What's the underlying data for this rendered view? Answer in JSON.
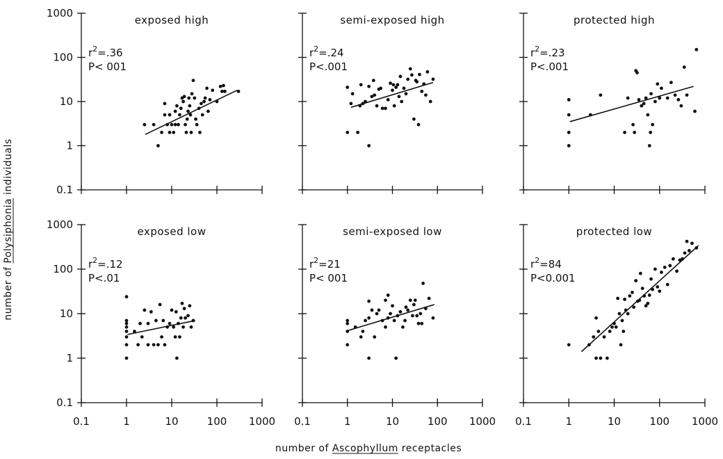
{
  "xlabel": {
    "pre": "number of ",
    "em": "Ascophyllum",
    "post": " receptacles"
  },
  "ylabel": {
    "pre": "number of ",
    "em": "Polysiphonia",
    "post": " individuals"
  },
  "chart_data": [
    {
      "type": "scatter",
      "title": "exposed high",
      "r2_label": ".36",
      "p_label": "P< 001",
      "xscale": "log",
      "yscale": "log",
      "xlim": [
        0.1,
        1000
      ],
      "ylim": [
        0.1,
        1000
      ],
      "fit": {
        "x": [
          2.6,
          280
        ],
        "y": [
          1.8,
          18
        ]
      },
      "points": [
        [
          2.5,
          3
        ],
        [
          4,
          3
        ],
        [
          5,
          1
        ],
        [
          6,
          2
        ],
        [
          7,
          5
        ],
        [
          7,
          9
        ],
        [
          8,
          3
        ],
        [
          9,
          2
        ],
        [
          9,
          5
        ],
        [
          10,
          3
        ],
        [
          11,
          2
        ],
        [
          12,
          3
        ],
        [
          12,
          6
        ],
        [
          13,
          8
        ],
        [
          14,
          3
        ],
        [
          15,
          5
        ],
        [
          16,
          7
        ],
        [
          17,
          12
        ],
        [
          18,
          10
        ],
        [
          19,
          13
        ],
        [
          20,
          3
        ],
        [
          21,
          2
        ],
        [
          22,
          4
        ],
        [
          23,
          6
        ],
        [
          24,
          12
        ],
        [
          25,
          8
        ],
        [
          26,
          5
        ],
        [
          27,
          2
        ],
        [
          28,
          15
        ],
        [
          30,
          30
        ],
        [
          32,
          12
        ],
        [
          34,
          4
        ],
        [
          36,
          3
        ],
        [
          40,
          7
        ],
        [
          42,
          2
        ],
        [
          45,
          9
        ],
        [
          48,
          5
        ],
        [
          52,
          10
        ],
        [
          55,
          12
        ],
        [
          60,
          20
        ],
        [
          64,
          6
        ],
        [
          70,
          11
        ],
        [
          80,
          18
        ],
        [
          100,
          10
        ],
        [
          120,
          22
        ],
        [
          130,
          17
        ],
        [
          140,
          23
        ],
        [
          150,
          17
        ],
        [
          300,
          17
        ]
      ]
    },
    {
      "type": "scatter",
      "title": "semi-exposed high",
      "r2_label": ".24",
      "p_label": "P<.001",
      "xscale": "log",
      "yscale": "log",
      "xlim": [
        0.1,
        1000
      ],
      "ylim": [
        0.1,
        1000
      ],
      "fit": {
        "x": [
          1.2,
          80
        ],
        "y": [
          7.4,
          27
        ]
      },
      "points": [
        [
          1,
          2
        ],
        [
          1,
          21
        ],
        [
          1.2,
          9
        ],
        [
          1.3,
          15
        ],
        [
          1.7,
          2
        ],
        [
          1.9,
          8
        ],
        [
          2,
          24
        ],
        [
          2.2,
          9
        ],
        [
          2.5,
          10
        ],
        [
          3,
          1
        ],
        [
          3,
          22
        ],
        [
          3.5,
          13
        ],
        [
          3.8,
          30
        ],
        [
          4,
          14
        ],
        [
          4.5,
          8
        ],
        [
          5,
          19
        ],
        [
          5.5,
          20
        ],
        [
          6,
          7
        ],
        [
          7,
          7
        ],
        [
          8,
          11
        ],
        [
          9,
          26
        ],
        [
          10,
          18
        ],
        [
          10.5,
          24
        ],
        [
          11,
          8
        ],
        [
          12,
          21
        ],
        [
          13,
          24
        ],
        [
          14,
          13
        ],
        [
          15,
          37
        ],
        [
          16,
          10
        ],
        [
          18,
          20
        ],
        [
          20,
          15
        ],
        [
          22,
          32
        ],
        [
          25,
          55
        ],
        [
          27,
          40
        ],
        [
          30,
          4
        ],
        [
          33,
          30
        ],
        [
          35,
          28
        ],
        [
          38,
          3
        ],
        [
          40,
          41
        ],
        [
          45,
          17
        ],
        [
          50,
          25
        ],
        [
          55,
          14
        ],
        [
          60,
          47
        ],
        [
          70,
          10
        ],
        [
          80,
          32
        ]
      ]
    },
    {
      "type": "scatter",
      "title": "protected high",
      "r2_label": ".23",
      "p_label": "P<.001",
      "xscale": "log",
      "yscale": "log",
      "xlim": [
        0.1,
        1000
      ],
      "ylim": [
        0.1,
        1000
      ],
      "fit": {
        "x": [
          1.05,
          560
        ],
        "y": [
          3.5,
          22
        ]
      },
      "points": [
        [
          1,
          1
        ],
        [
          1,
          2
        ],
        [
          1,
          5
        ],
        [
          1,
          11
        ],
        [
          3,
          5
        ],
        [
          5,
          14
        ],
        [
          17,
          2
        ],
        [
          20,
          12
        ],
        [
          26,
          3
        ],
        [
          28,
          2
        ],
        [
          30,
          50
        ],
        [
          32,
          45
        ],
        [
          35,
          11
        ],
        [
          40,
          8
        ],
        [
          45,
          9
        ],
        [
          50,
          12
        ],
        [
          55,
          5
        ],
        [
          60,
          1
        ],
        [
          63,
          2
        ],
        [
          65,
          15
        ],
        [
          70,
          3
        ],
        [
          80,
          10
        ],
        [
          90,
          25
        ],
        [
          100,
          12
        ],
        [
          110,
          20
        ],
        [
          150,
          12
        ],
        [
          180,
          27
        ],
        [
          220,
          14
        ],
        [
          260,
          11
        ],
        [
          300,
          8
        ],
        [
          350,
          60
        ],
        [
          400,
          14
        ],
        [
          600,
          6
        ],
        [
          650,
          150
        ]
      ]
    },
    {
      "type": "scatter",
      "title": "exposed low",
      "r2_label": ".12",
      "p_label": "P<.01",
      "xscale": "log",
      "yscale": "log",
      "xlim": [
        0.1,
        1000
      ],
      "ylim": [
        0.1,
        1000
      ],
      "fit": {
        "x": [
          1.05,
          33
        ],
        "y": [
          3.4,
          7
        ]
      },
      "points": [
        [
          1,
          1
        ],
        [
          1,
          2
        ],
        [
          1,
          3
        ],
        [
          1,
          4
        ],
        [
          1,
          5
        ],
        [
          1,
          6
        ],
        [
          1,
          7
        ],
        [
          1,
          24
        ],
        [
          1.5,
          4
        ],
        [
          1.8,
          2
        ],
        [
          2,
          6
        ],
        [
          2.2,
          3
        ],
        [
          2.5,
          12
        ],
        [
          3,
          2
        ],
        [
          3,
          6
        ],
        [
          3.5,
          11
        ],
        [
          4,
          2
        ],
        [
          4.5,
          7
        ],
        [
          5,
          2
        ],
        [
          5.5,
          16
        ],
        [
          6,
          3
        ],
        [
          6.5,
          7
        ],
        [
          7,
          2
        ],
        [
          8,
          5
        ],
        [
          9,
          6
        ],
        [
          10,
          12
        ],
        [
          11,
          5
        ],
        [
          12,
          3
        ],
        [
          12.5,
          11
        ],
        [
          13,
          1
        ],
        [
          14,
          6
        ],
        [
          15,
          3
        ],
        [
          16,
          8
        ],
        [
          17,
          17
        ],
        [
          18,
          5
        ],
        [
          19,
          13
        ],
        [
          20,
          8
        ],
        [
          23,
          9
        ],
        [
          25,
          15
        ],
        [
          27,
          5
        ],
        [
          30,
          7
        ]
      ]
    },
    {
      "type": "scatter",
      "title": "semi-exposed low",
      "r2_label": "21",
      "p_label": "P< 001",
      "xscale": "log",
      "yscale": "log",
      "xlim": [
        0.1,
        1000
      ],
      "ylim": [
        0.1,
        1000
      ],
      "fit": {
        "x": [
          1.05,
          85
        ],
        "y": [
          4.2,
          16
        ]
      },
      "points": [
        [
          1,
          2
        ],
        [
          1,
          4
        ],
        [
          1,
          6
        ],
        [
          1,
          7
        ],
        [
          1.5,
          5
        ],
        [
          2,
          3
        ],
        [
          2.2,
          4
        ],
        [
          2.5,
          7
        ],
        [
          3,
          1
        ],
        [
          3,
          8
        ],
        [
          3,
          19
        ],
        [
          3.5,
          12
        ],
        [
          4,
          3
        ],
        [
          4.5,
          10
        ],
        [
          5,
          12
        ],
        [
          6,
          7
        ],
        [
          7,
          5
        ],
        [
          7,
          20
        ],
        [
          8,
          8
        ],
        [
          8,
          26
        ],
        [
          9,
          10
        ],
        [
          10,
          15
        ],
        [
          11,
          7
        ],
        [
          12,
          1
        ],
        [
          13,
          9
        ],
        [
          15,
          11
        ],
        [
          17,
          5
        ],
        [
          19,
          7
        ],
        [
          20,
          14
        ],
        [
          22,
          12
        ],
        [
          25,
          20
        ],
        [
          28,
          9
        ],
        [
          30,
          16
        ],
        [
          32,
          20
        ],
        [
          35,
          9
        ],
        [
          38,
          6
        ],
        [
          42,
          10
        ],
        [
          45,
          6
        ],
        [
          48,
          48
        ],
        [
          55,
          13
        ],
        [
          65,
          22
        ],
        [
          80,
          8
        ]
      ]
    },
    {
      "type": "scatter",
      "title": "protected low",
      "r2_label": "84",
      "p_label": "P<0.001",
      "xscale": "log",
      "yscale": "log",
      "xlim": [
        0.1,
        1000
      ],
      "ylim": [
        0.1,
        1000
      ],
      "fit": {
        "x": [
          1.9,
          720
        ],
        "y": [
          1.4,
          340
        ]
      },
      "points": [
        [
          1,
          2
        ],
        [
          2.8,
          2
        ],
        [
          3.5,
          3
        ],
        [
          4,
          8
        ],
        [
          4,
          1
        ],
        [
          4.5,
          4
        ],
        [
          5,
          1
        ],
        [
          6,
          3
        ],
        [
          7,
          1
        ],
        [
          8,
          4
        ],
        [
          9,
          5
        ],
        [
          10,
          6
        ],
        [
          11,
          5
        ],
        [
          12,
          22
        ],
        [
          13,
          10
        ],
        [
          14,
          2
        ],
        [
          15,
          7
        ],
        [
          16,
          4
        ],
        [
          17,
          21
        ],
        [
          18,
          12
        ],
        [
          20,
          10
        ],
        [
          22,
          25
        ],
        [
          25,
          30
        ],
        [
          27,
          14
        ],
        [
          30,
          55
        ],
        [
          33,
          19
        ],
        [
          36,
          20
        ],
        [
          38,
          80
        ],
        [
          42,
          37
        ],
        [
          46,
          25
        ],
        [
          50,
          15
        ],
        [
          55,
          17
        ],
        [
          60,
          26
        ],
        [
          65,
          60
        ],
        [
          70,
          35
        ],
        [
          80,
          100
        ],
        [
          90,
          40
        ],
        [
          100,
          32
        ],
        [
          110,
          85
        ],
        [
          130,
          110
        ],
        [
          150,
          45
        ],
        [
          170,
          120
        ],
        [
          200,
          170
        ],
        [
          240,
          90
        ],
        [
          280,
          160
        ],
        [
          320,
          170
        ],
        [
          360,
          230
        ],
        [
          400,
          420
        ],
        [
          450,
          260
        ],
        [
          520,
          380
        ],
        [
          650,
          300
        ]
      ]
    }
  ]
}
